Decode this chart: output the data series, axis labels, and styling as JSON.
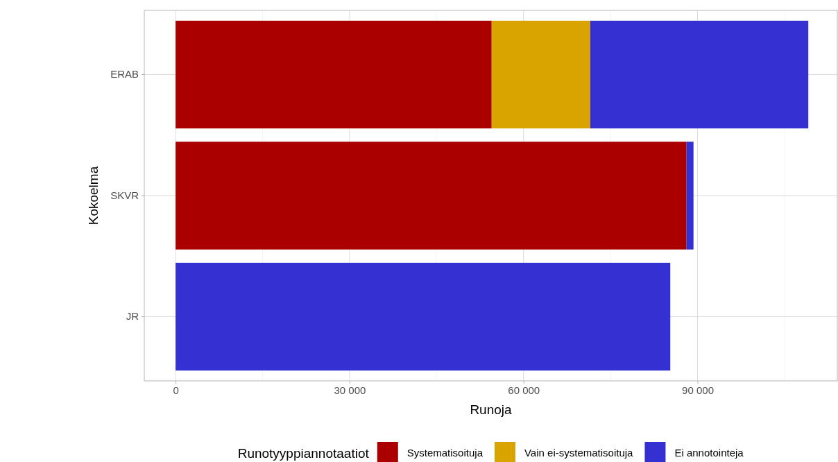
{
  "chart_data": {
    "type": "bar",
    "orientation": "horizontal",
    "stacked": true,
    "xlabel": "Runoja",
    "ylabel": "Kokoelma",
    "legend_title": "Runotyyppiannotaatiot",
    "categories": [
      "ERAB",
      "SKVR",
      "JR"
    ],
    "series": [
      {
        "name": "Systematisoituja",
        "color": "#aa0000",
        "values": [
          54500,
          88100,
          0
        ]
      },
      {
        "name": "Vain ei-systematisoituja",
        "color": "#d9a400",
        "values": [
          17000,
          0,
          0
        ]
      },
      {
        "name": "Ei annotointeja",
        "color": "#3430d2",
        "values": [
          37600,
          1200,
          85300
        ]
      }
    ],
    "xlim": [
      -5400,
      114100
    ],
    "xticks": [
      {
        "value": 0,
        "label": "0"
      },
      {
        "value": 30000,
        "label": "30 000"
      },
      {
        "value": 60000,
        "label": "60 000"
      },
      {
        "value": 90000,
        "label": "90 000"
      }
    ],
    "grid": true,
    "legend": "bottom"
  }
}
